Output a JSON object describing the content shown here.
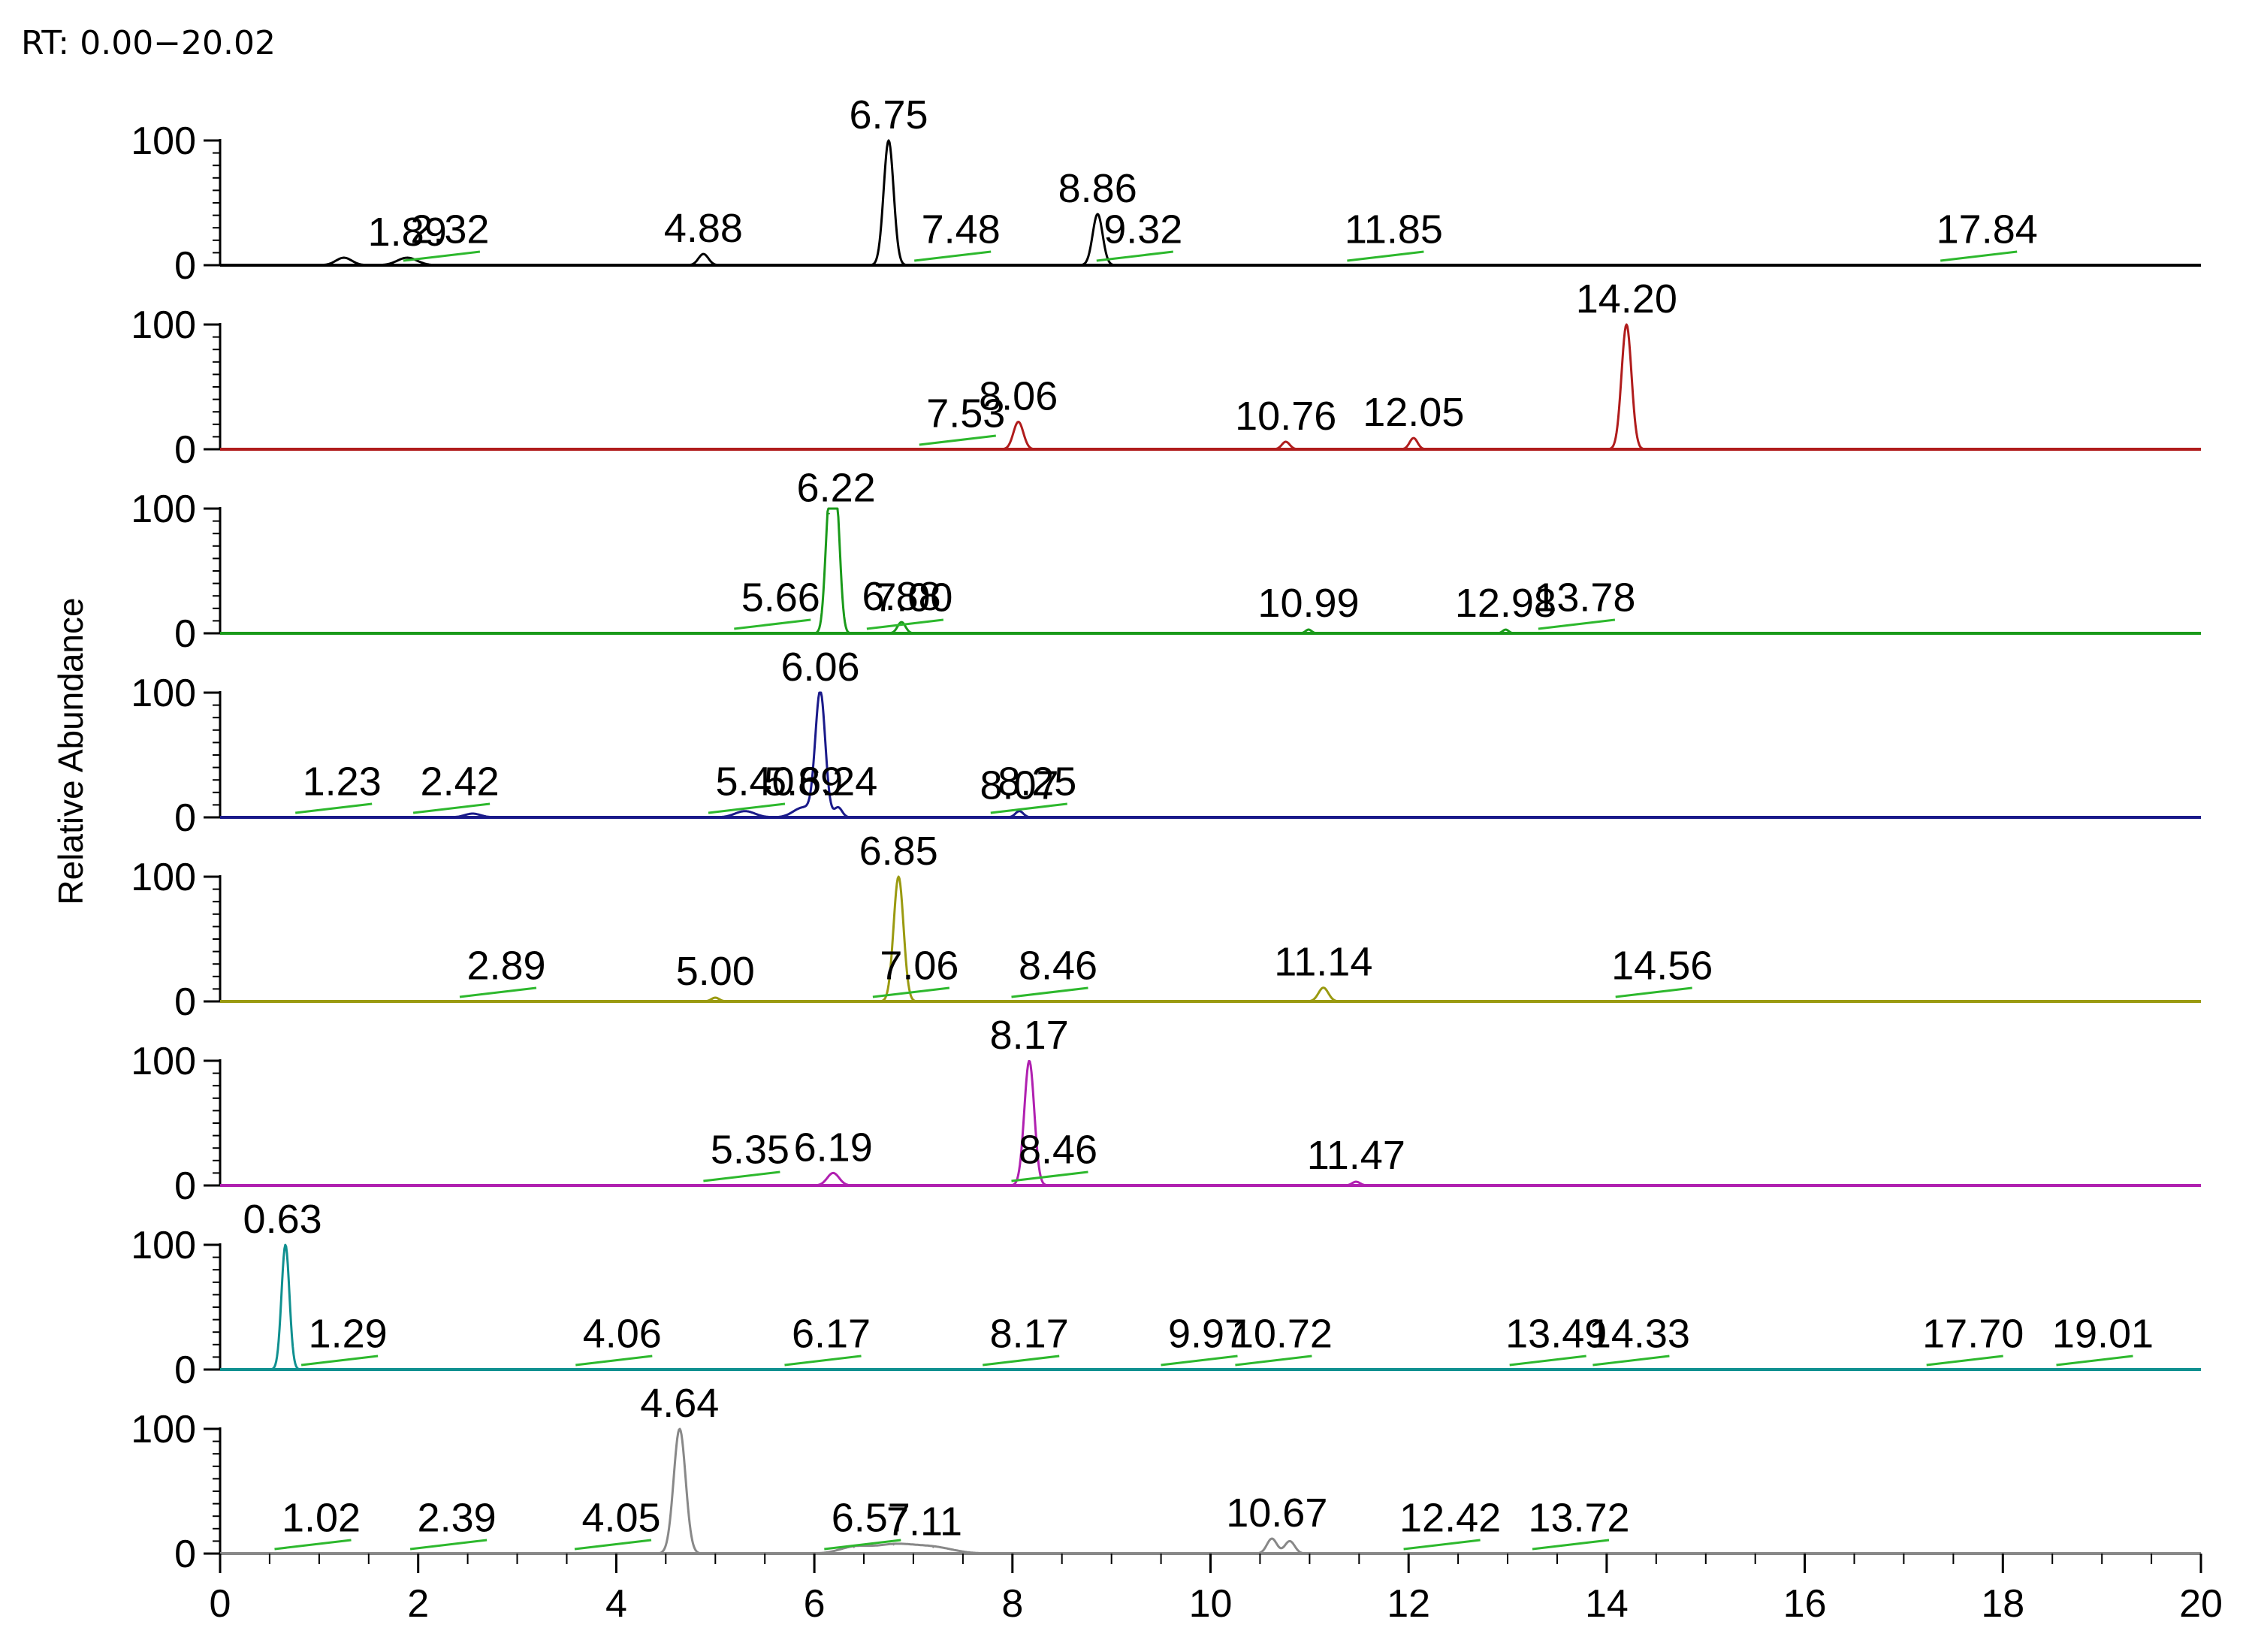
{
  "rt_label": "RT: 0.00−20.02",
  "chart_data": {
    "type": "line",
    "title": "",
    "xlabel": "",
    "ylabel": "Relative Abundance",
    "xlim": [
      0,
      20
    ],
    "x_ticks": [
      "0",
      "2",
      "4",
      "6",
      "8",
      "10",
      "12",
      "14",
      "16",
      "18",
      "20"
    ],
    "ylim": [
      0,
      100
    ],
    "y_ticks": [
      "0",
      "100"
    ],
    "annotation_color": "#2db82d",
    "panels": [
      {
        "name": "panel-1",
        "color": "#000000",
        "peaks": [
          {
            "x": 1.25,
            "h": 6,
            "w": 0.08
          },
          {
            "x": 1.89,
            "h": 6,
            "w": 0.1
          },
          {
            "x": 4.88,
            "h": 9,
            "w": 0.05
          },
          {
            "x": 6.75,
            "h": 100,
            "w": 0.05
          },
          {
            "x": 8.86,
            "h": 41,
            "w": 0.05
          }
        ],
        "labels": [
          {
            "text": "1.89",
            "x": 1.89
          },
          {
            "text": "2.32",
            "x": 2.32
          },
          {
            "text": "4.88",
            "x": 4.88
          },
          {
            "text": "6.75",
            "x": 6.75
          },
          {
            "text": "7.48",
            "x": 7.48
          },
          {
            "text": "8.86",
            "x": 8.86
          },
          {
            "text": "9.32",
            "x": 9.32
          },
          {
            "text": "11.85",
            "x": 11.85
          },
          {
            "text": "17.84",
            "x": 17.84
          }
        ]
      },
      {
        "name": "panel-2",
        "color": "#b01c1c",
        "peaks": [
          {
            "x": 8.06,
            "h": 22,
            "w": 0.05
          },
          {
            "x": 10.76,
            "h": 6,
            "w": 0.04
          },
          {
            "x": 12.05,
            "h": 9,
            "w": 0.04
          },
          {
            "x": 14.2,
            "h": 100,
            "w": 0.05
          }
        ],
        "labels": [
          {
            "text": "7.53",
            "x": 7.53
          },
          {
            "text": "8.06",
            "x": 8.06
          },
          {
            "text": "10.76",
            "x": 10.76
          },
          {
            "text": "12.05",
            "x": 12.05
          },
          {
            "text": "14.20",
            "x": 14.2
          }
        ]
      },
      {
        "name": "panel-3",
        "color": "#1a9a1a",
        "peaks": [
          {
            "x": 6.15,
            "h": 96,
            "w": 0.04
          },
          {
            "x": 6.22,
            "h": 100,
            "w": 0.04
          },
          {
            "x": 6.88,
            "h": 9,
            "w": 0.04
          },
          {
            "x": 10.99,
            "h": 3,
            "w": 0.03
          },
          {
            "x": 12.98,
            "h": 3,
            "w": 0.03
          }
        ],
        "labels": [
          {
            "text": "5.66",
            "x": 5.66
          },
          {
            "text": "6.22",
            "x": 6.22
          },
          {
            "text": "6.88",
            "x": 6.88
          },
          {
            "text": "7.00",
            "x": 7.0
          },
          {
            "text": "10.99",
            "x": 10.99
          },
          {
            "text": "12.98",
            "x": 12.98
          },
          {
            "text": "13.78",
            "x": 13.78
          }
        ]
      },
      {
        "name": "panel-4",
        "color": "#1a1a8a",
        "peaks": [
          {
            "x": 2.55,
            "h": 3,
            "w": 0.08
          },
          {
            "x": 5.3,
            "h": 5,
            "w": 0.1
          },
          {
            "x": 5.89,
            "h": 8,
            "w": 0.1
          },
          {
            "x": 6.06,
            "h": 100,
            "w": 0.05
          },
          {
            "x": 6.24,
            "h": 8,
            "w": 0.04
          },
          {
            "x": 8.07,
            "h": 5,
            "w": 0.04
          }
        ],
        "labels": [
          {
            "text": "1.23",
            "x": 1.23
          },
          {
            "text": "2.42",
            "x": 2.42
          },
          {
            "text": "5.40",
            "x": 5.4
          },
          {
            "text": "5.89",
            "x": 5.89
          },
          {
            "text": "6.06",
            "x": 6.06
          },
          {
            "text": "6.24",
            "x": 6.24
          },
          {
            "text": "8.07",
            "x": 8.07
          },
          {
            "text": "8.25",
            "x": 8.25
          }
        ]
      },
      {
        "name": "panel-5",
        "color": "#9a9a10",
        "peaks": [
          {
            "x": 5.0,
            "h": 3,
            "w": 0.04
          },
          {
            "x": 6.85,
            "h": 100,
            "w": 0.05
          },
          {
            "x": 11.14,
            "h": 11,
            "w": 0.05
          }
        ],
        "labels": [
          {
            "text": "2.89",
            "x": 2.89
          },
          {
            "text": "5.00",
            "x": 5.0
          },
          {
            "text": "6.85",
            "x": 6.85
          },
          {
            "text": "7.06",
            "x": 7.06
          },
          {
            "text": "8.46",
            "x": 8.46
          },
          {
            "text": "11.14",
            "x": 11.14
          },
          {
            "text": "14.56",
            "x": 14.56
          }
        ]
      },
      {
        "name": "panel-6",
        "color": "#b020b0",
        "peaks": [
          {
            "x": 6.19,
            "h": 10,
            "w": 0.06
          },
          {
            "x": 8.17,
            "h": 100,
            "w": 0.05
          },
          {
            "x": 11.47,
            "h": 3,
            "w": 0.04
          }
        ],
        "labels": [
          {
            "text": "5.35",
            "x": 5.35
          },
          {
            "text": "6.19",
            "x": 6.19
          },
          {
            "text": "8.17",
            "x": 8.17
          },
          {
            "text": "8.46",
            "x": 8.46
          },
          {
            "text": "11.47",
            "x": 11.47
          }
        ]
      },
      {
        "name": "panel-7",
        "color": "#109090",
        "peaks": [
          {
            "x": 0.66,
            "h": 100,
            "w": 0.04
          }
        ],
        "labels": [
          {
            "text": "0.63",
            "x": 0.63
          },
          {
            "text": "1.29",
            "x": 1.29
          },
          {
            "text": "4.06",
            "x": 4.06
          },
          {
            "text": "6.17",
            "x": 6.17
          },
          {
            "text": "8.17",
            "x": 8.17
          },
          {
            "text": "9.97",
            "x": 9.97
          },
          {
            "text": "10.72",
            "x": 10.72
          },
          {
            "text": "13.49",
            "x": 13.49
          },
          {
            "text": "14.33",
            "x": 14.33
          },
          {
            "text": "17.70",
            "x": 17.7
          },
          {
            "text": "19.01",
            "x": 19.01
          }
        ]
      },
      {
        "name": "panel-8",
        "color": "#888888",
        "peaks": [
          {
            "x": 4.64,
            "h": 100,
            "w": 0.06
          },
          {
            "x": 6.4,
            "h": 5,
            "w": 0.15
          },
          {
            "x": 6.8,
            "h": 7,
            "w": 0.2
          },
          {
            "x": 7.2,
            "h": 5,
            "w": 0.2
          },
          {
            "x": 10.62,
            "h": 12,
            "w": 0.05
          },
          {
            "x": 10.8,
            "h": 10,
            "w": 0.05
          }
        ],
        "labels": [
          {
            "text": "1.02",
            "x": 1.02
          },
          {
            "text": "2.39",
            "x": 2.39
          },
          {
            "text": "4.05",
            "x": 4.05
          },
          {
            "text": "4.64",
            "x": 4.64
          },
          {
            "text": "6.57",
            "x": 6.57
          },
          {
            "text": "7.11",
            "x": 7.11
          },
          {
            "text": "10.67",
            "x": 10.67
          },
          {
            "text": "12.42",
            "x": 12.42
          },
          {
            "text": "13.72",
            "x": 13.72
          }
        ]
      }
    ]
  }
}
